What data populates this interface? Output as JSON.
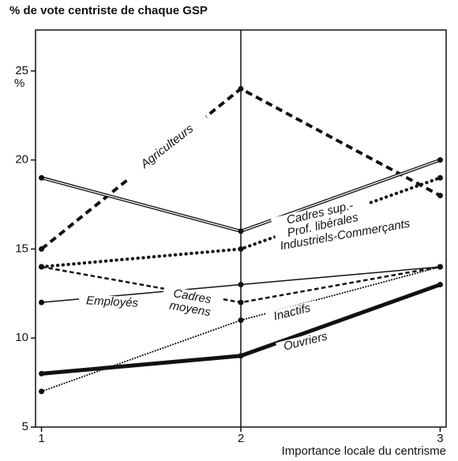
{
  "chart_data": {
    "type": "line",
    "title": "% de vote centriste de chaque GSP",
    "y_unit": "%",
    "xlabel": "Importance locale du centrisme",
    "x": [
      1,
      2,
      3
    ],
    "xlim": [
      0.97,
      3.03
    ],
    "xticks": [
      1,
      2,
      3
    ],
    "ylim": [
      5,
      27.3
    ],
    "yticks": [
      5,
      10,
      15,
      20,
      25
    ],
    "series": [
      {
        "name": "Agriculteurs",
        "color": "#111111",
        "line_style": "dashed",
        "linewidth": 4,
        "values": [
          15,
          24,
          18
        ]
      },
      {
        "name": "Cadres sup.- Prof. libérales",
        "color": "#111111",
        "line_style": "double",
        "linewidth": 4,
        "values": [
          19,
          16,
          20
        ]
      },
      {
        "name": "Industriels-Commerçants",
        "color": "#111111",
        "line_style": "dotted",
        "linewidth": 4,
        "values": [
          14,
          15,
          19
        ]
      },
      {
        "name": "Employés",
        "color": "#111111",
        "line_style": "solid",
        "linewidth": 1.5,
        "values": [
          12,
          13,
          14
        ]
      },
      {
        "name": "Cadres moyens",
        "color": "#111111",
        "line_style": "dashed",
        "linewidth": 2.5,
        "values": [
          14,
          12,
          14
        ]
      },
      {
        "name": "Inactifs",
        "color": "#111111",
        "line_style": "dotted",
        "linewidth": 2,
        "values": [
          7,
          11,
          14
        ]
      },
      {
        "name": "Ouvriers",
        "color": "#111111",
        "line_style": "solid",
        "linewidth": 5,
        "values": [
          8,
          9,
          13
        ]
      }
    ]
  }
}
